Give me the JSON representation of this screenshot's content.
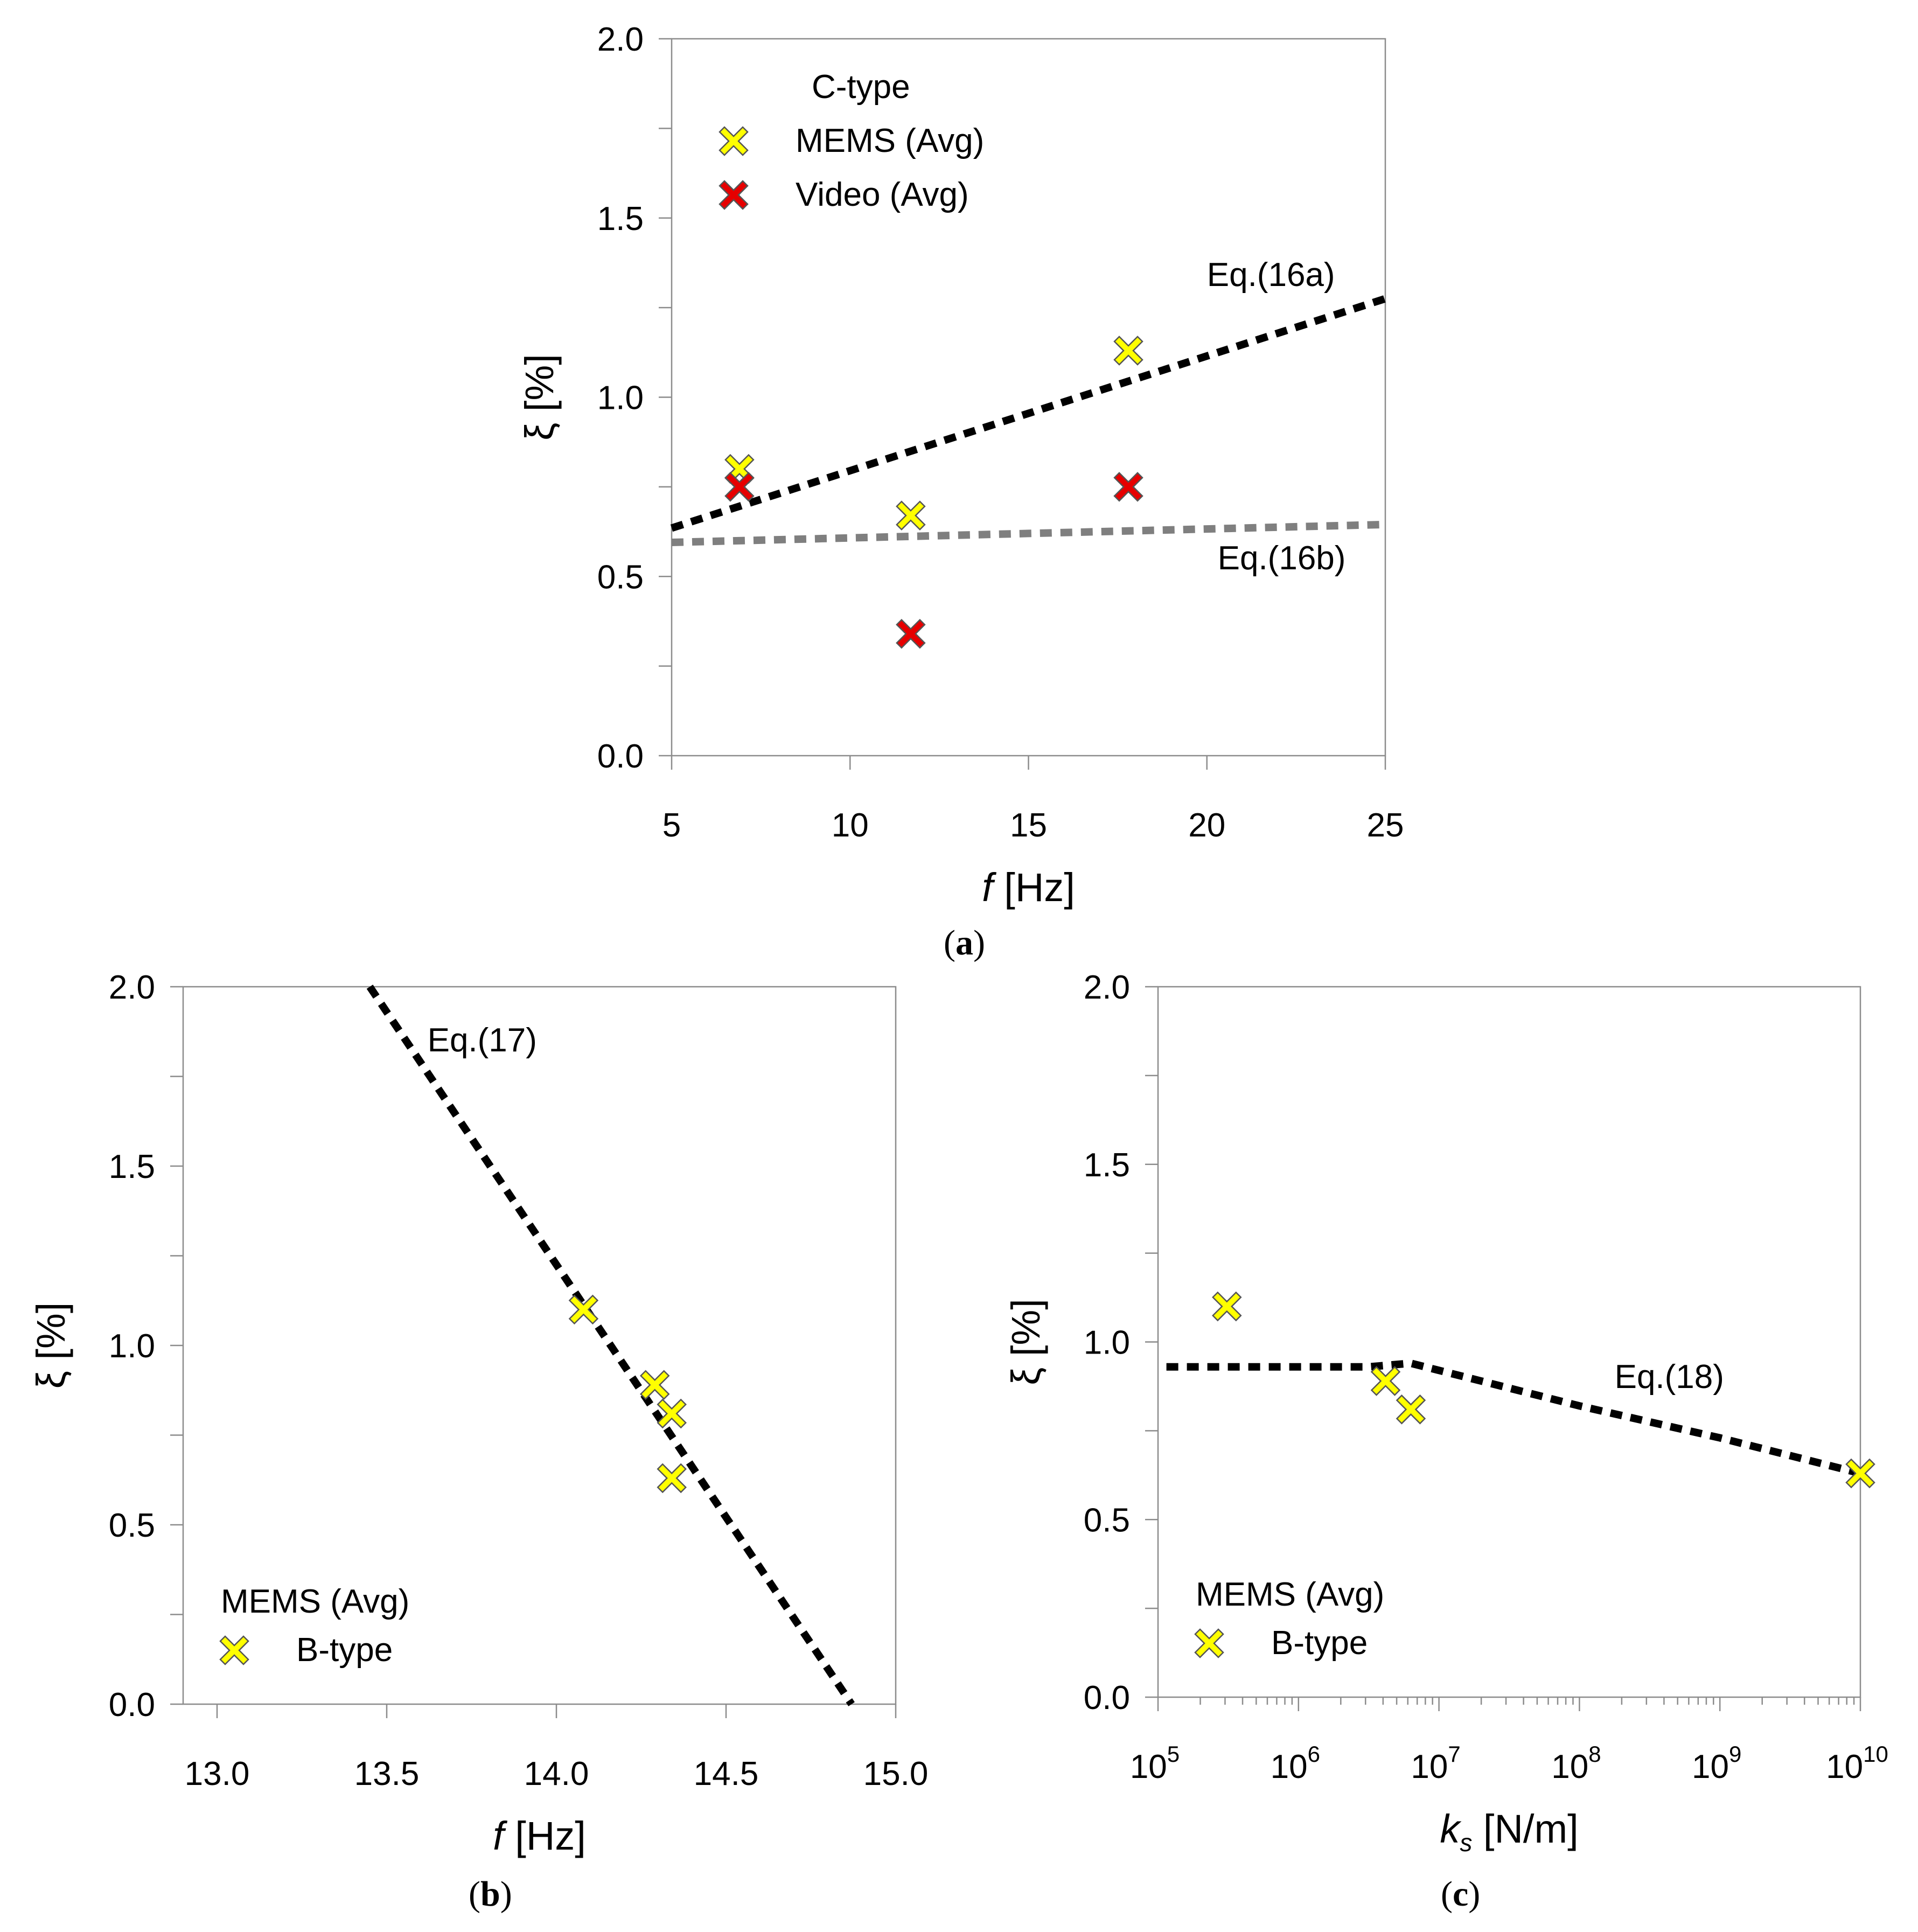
{
  "chart_data": [
    {
      "id": "a",
      "type": "scatter",
      "panel_label": "(a)",
      "xlabel_var": "f",
      "xlabel_unit": "[Hz]",
      "ylabel_var": "ξ",
      "ylabel_unit": "[%]",
      "xscale": "linear",
      "xlim": [
        5,
        25
      ],
      "ylim": [
        0,
        2
      ],
      "xticks": [
        "5",
        "10",
        "15",
        "20",
        "25"
      ],
      "xtick_values": [
        5,
        10,
        15,
        20,
        25
      ],
      "yticks": [
        "0.0",
        "0.5",
        "1.0",
        "1.5",
        "2.0"
      ],
      "ytick_values": [
        0,
        0.5,
        1,
        1.5,
        2
      ],
      "y_minor_step": 0.25,
      "grid": false,
      "legend": {
        "title": "C-type",
        "placement": "top-left",
        "entries": [
          {
            "label": "MEMS (Avg)",
            "color": "#ffff00"
          },
          {
            "label": "Video (Avg)",
            "color": "#e60000"
          }
        ]
      },
      "series": [
        {
          "name": "MEMS (Avg)",
          "marker": "x",
          "color": "#ffff00",
          "points": [
            [
              6.9,
              0.8
            ],
            [
              11.7,
              0.67
            ],
            [
              17.8,
              1.13
            ]
          ]
        },
        {
          "name": "Video (Avg)",
          "marker": "x",
          "color": "#e60000",
          "points": [
            [
              6.9,
              0.75
            ],
            [
              11.7,
              0.34
            ],
            [
              17.8,
              0.75
            ]
          ]
        }
      ],
      "lines": [
        {
          "label": "Eq.(16a)",
          "color": "#000000",
          "points": [
            [
              5,
              0.635
            ],
            [
              25,
              1.275
            ]
          ]
        },
        {
          "label": "Eq.(16b)",
          "color": "#7f7f7f",
          "points": [
            [
              5,
              0.595
            ],
            [
              25,
              0.645
            ]
          ]
        }
      ],
      "annotations": [
        {
          "text": "Eq.(16a)",
          "x": 20,
          "y": 1.31
        },
        {
          "text": "Eq.(16b)",
          "x": 20.3,
          "y": 0.52
        }
      ]
    },
    {
      "id": "b",
      "type": "scatter",
      "panel_label": "(b)",
      "xlabel_var": "f",
      "xlabel_unit": "[Hz]",
      "ylabel_var": "ξ",
      "ylabel_unit": "[%]",
      "xscale": "linear",
      "xlim": [
        12.9,
        15.0
      ],
      "ylim": [
        0,
        2
      ],
      "xticks": [
        "13.0",
        "13.5",
        "14.0",
        "14.5",
        "15.0"
      ],
      "xtick_values": [
        13.0,
        13.5,
        14.0,
        14.5,
        15.0
      ],
      "yticks": [
        "0.0",
        "0.5",
        "1.0",
        "1.5",
        "2.0"
      ],
      "ytick_values": [
        0,
        0.5,
        1,
        1.5,
        2
      ],
      "y_minor_step": 0.25,
      "grid": false,
      "legend": {
        "title": "MEMS (Avg)",
        "placement": "bottom-left",
        "entries": [
          {
            "label": "B-type",
            "color": "#ffff00"
          }
        ]
      },
      "series": [
        {
          "name": "B-type",
          "marker": "x",
          "color": "#ffff00",
          "points": [
            [
              14.08,
              1.1
            ],
            [
              14.29,
              0.89
            ],
            [
              14.34,
              0.81
            ],
            [
              14.34,
              0.63
            ]
          ]
        }
      ],
      "lines": [
        {
          "label": "Eq.(17)",
          "color": "#000000",
          "points": [
            [
              13.45,
              2.0
            ],
            [
              14.87,
              0.0
            ]
          ]
        }
      ],
      "annotations": [
        {
          "text": "Eq.(17)",
          "x": 13.62,
          "y": 1.82
        }
      ]
    },
    {
      "id": "c",
      "type": "scatter",
      "panel_label": "(c)",
      "xlabel_var": "k",
      "xlabel_sub": "s",
      "xlabel_unit": "[N/m]",
      "ylabel_var": "ξ",
      "ylabel_unit": "[%]",
      "xscale": "log",
      "xlim_log10": [
        5,
        10
      ],
      "ylim": [
        0,
        2
      ],
      "xticks": [
        {
          "base": "10",
          "exp": "5"
        },
        {
          "base": "10",
          "exp": "6"
        },
        {
          "base": "10",
          "exp": "7"
        },
        {
          "base": "10",
          "exp": "8"
        },
        {
          "base": "10",
          "exp": "9"
        },
        {
          "base": "10",
          "exp": "10"
        }
      ],
      "xtick_log10": [
        5,
        6,
        7,
        8,
        9,
        10
      ],
      "yticks": [
        "0.0",
        "0.5",
        "1.0",
        "1.5",
        "2.0"
      ],
      "ytick_values": [
        0,
        0.5,
        1,
        1.5,
        2
      ],
      "y_minor_step": 0.25,
      "grid": false,
      "legend": {
        "title": "MEMS (Avg)",
        "placement": "bottom-left",
        "entries": [
          {
            "label": "B-type",
            "color": "#ffff00"
          }
        ]
      },
      "series": [
        {
          "name": "B-type",
          "marker": "x",
          "color": "#ffff00",
          "points_log10x": [
            [
              5.49,
              1.1
            ],
            [
              6.62,
              0.89
            ],
            [
              6.8,
              0.81
            ],
            [
              10.0,
              0.63
            ]
          ]
        }
      ],
      "lines": [
        {
          "label": "Eq.(18)",
          "color": "#000000",
          "points_log10x": [
            [
              5.06,
              0.93
            ],
            [
              6.5,
              0.93
            ],
            [
              6.8,
              0.94
            ],
            [
              7.3,
              0.89
            ],
            [
              8.0,
              0.82
            ],
            [
              9.0,
              0.73
            ],
            [
              9.5,
              0.68
            ],
            [
              10.0,
              0.63
            ]
          ]
        }
      ],
      "annotations": [
        {
          "text": "Eq.(18)",
          "x_log10": 8.25,
          "y": 0.87
        }
      ]
    }
  ]
}
